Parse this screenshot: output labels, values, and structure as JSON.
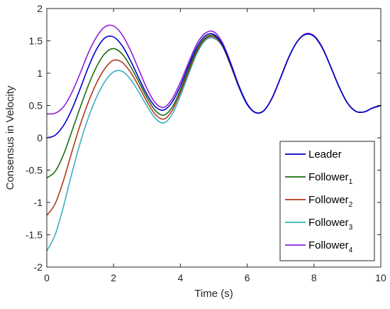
{
  "chart_data": {
    "type": "line",
    "title": "",
    "xlabel": "Time (s)",
    "ylabel": "Consensus in Velocity",
    "xlim": [
      0,
      10
    ],
    "ylim": [
      -2,
      2
    ],
    "xticks": [
      0,
      2,
      4,
      6,
      8,
      10
    ],
    "yticks": [
      -2,
      -1.5,
      -1,
      -0.5,
      0,
      0.5,
      1,
      1.5,
      2
    ],
    "xtick_labels": [
      "0",
      "2",
      "4",
      "6",
      "8",
      "10"
    ],
    "ytick_labels": [
      "-2",
      "-1.5",
      "-1",
      "-0.5",
      "0",
      "0.5",
      "1",
      "1.5",
      "2"
    ],
    "grid": false,
    "legend_position": "bottom-right",
    "x": [
      0,
      0.25,
      0.5,
      0.75,
      1,
      1.25,
      1.5,
      1.75,
      2,
      2.25,
      2.5,
      2.75,
      3,
      3.25,
      3.5,
      3.75,
      4,
      4.25,
      4.5,
      4.75,
      5,
      5.25,
      5.5,
      5.75,
      6,
      6.25,
      6.5,
      6.75,
      7,
      7.25,
      7.5,
      7.75,
      8,
      8.25,
      8.5,
      8.75,
      9,
      9.25,
      9.5,
      9.75,
      10
    ],
    "series": [
      {
        "name": "Leader",
        "subscript": "",
        "color": "#0000CC",
        "values": [
          0,
          0.04,
          0.19,
          0.44,
          0.76,
          1.1,
          1.38,
          1.55,
          1.56,
          1.43,
          1.2,
          0.93,
          0.67,
          0.48,
          0.43,
          0.55,
          0.8,
          1.12,
          1.41,
          1.58,
          1.6,
          1.45,
          1.15,
          0.8,
          0.52,
          0.39,
          0.42,
          0.62,
          0.93,
          1.25,
          1.49,
          1.6,
          1.57,
          1.39,
          1.1,
          0.79,
          0.54,
          0.41,
          0.4,
          0.46,
          0.5
        ]
      },
      {
        "name": "Follower",
        "subscript": "1",
        "color": "#1A6E0F",
        "values": [
          -0.62,
          -0.52,
          -0.26,
          0.1,
          0.47,
          0.82,
          1.11,
          1.31,
          1.38,
          1.3,
          1.11,
          0.87,
          0.62,
          0.42,
          0.35,
          0.47,
          0.74,
          1.07,
          1.37,
          1.55,
          1.58,
          1.44,
          1.14,
          0.8,
          0.52,
          0.39,
          0.42,
          0.62,
          0.93,
          1.25,
          1.49,
          1.6,
          1.57,
          1.39,
          1.1,
          0.79,
          0.54,
          0.41,
          0.4,
          0.46,
          0.5
        ]
      },
      {
        "name": "Follower",
        "subscript": "2",
        "color": "#B03A1B",
        "values": [
          -1.2,
          -1.02,
          -0.66,
          -0.22,
          0.2,
          0.56,
          0.86,
          1.08,
          1.2,
          1.17,
          1.02,
          0.8,
          0.56,
          0.36,
          0.29,
          0.42,
          0.7,
          1.03,
          1.34,
          1.53,
          1.56,
          1.43,
          1.13,
          0.79,
          0.52,
          0.39,
          0.42,
          0.62,
          0.93,
          1.25,
          1.49,
          1.6,
          1.57,
          1.39,
          1.1,
          0.79,
          0.54,
          0.41,
          0.4,
          0.46,
          0.5
        ]
      },
      {
        "name": "Follower",
        "subscript": "3",
        "color": "#3AAFC4",
        "values": [
          -1.75,
          -1.5,
          -1.06,
          -0.55,
          -0.08,
          0.32,
          0.64,
          0.88,
          1.02,
          1.03,
          0.91,
          0.71,
          0.49,
          0.3,
          0.23,
          0.36,
          0.65,
          0.99,
          1.31,
          1.51,
          1.54,
          1.42,
          1.12,
          0.78,
          0.51,
          0.39,
          0.42,
          0.62,
          0.93,
          1.25,
          1.49,
          1.6,
          1.57,
          1.39,
          1.1,
          0.79,
          0.54,
          0.41,
          0.4,
          0.46,
          0.5
        ]
      },
      {
        "name": "Follower",
        "subscript": "4",
        "color": "#8E1FD6",
        "values": [
          0.37,
          0.38,
          0.48,
          0.7,
          1,
          1.32,
          1.57,
          1.72,
          1.73,
          1.6,
          1.36,
          1.06,
          0.76,
          0.54,
          0.47,
          0.6,
          0.86,
          1.17,
          1.46,
          1.62,
          1.64,
          1.48,
          1.17,
          0.81,
          0.53,
          0.39,
          0.42,
          0.62,
          0.93,
          1.25,
          1.49,
          1.61,
          1.58,
          1.4,
          1.1,
          0.79,
          0.54,
          0.41,
          0.4,
          0.46,
          0.5
        ]
      }
    ]
  }
}
